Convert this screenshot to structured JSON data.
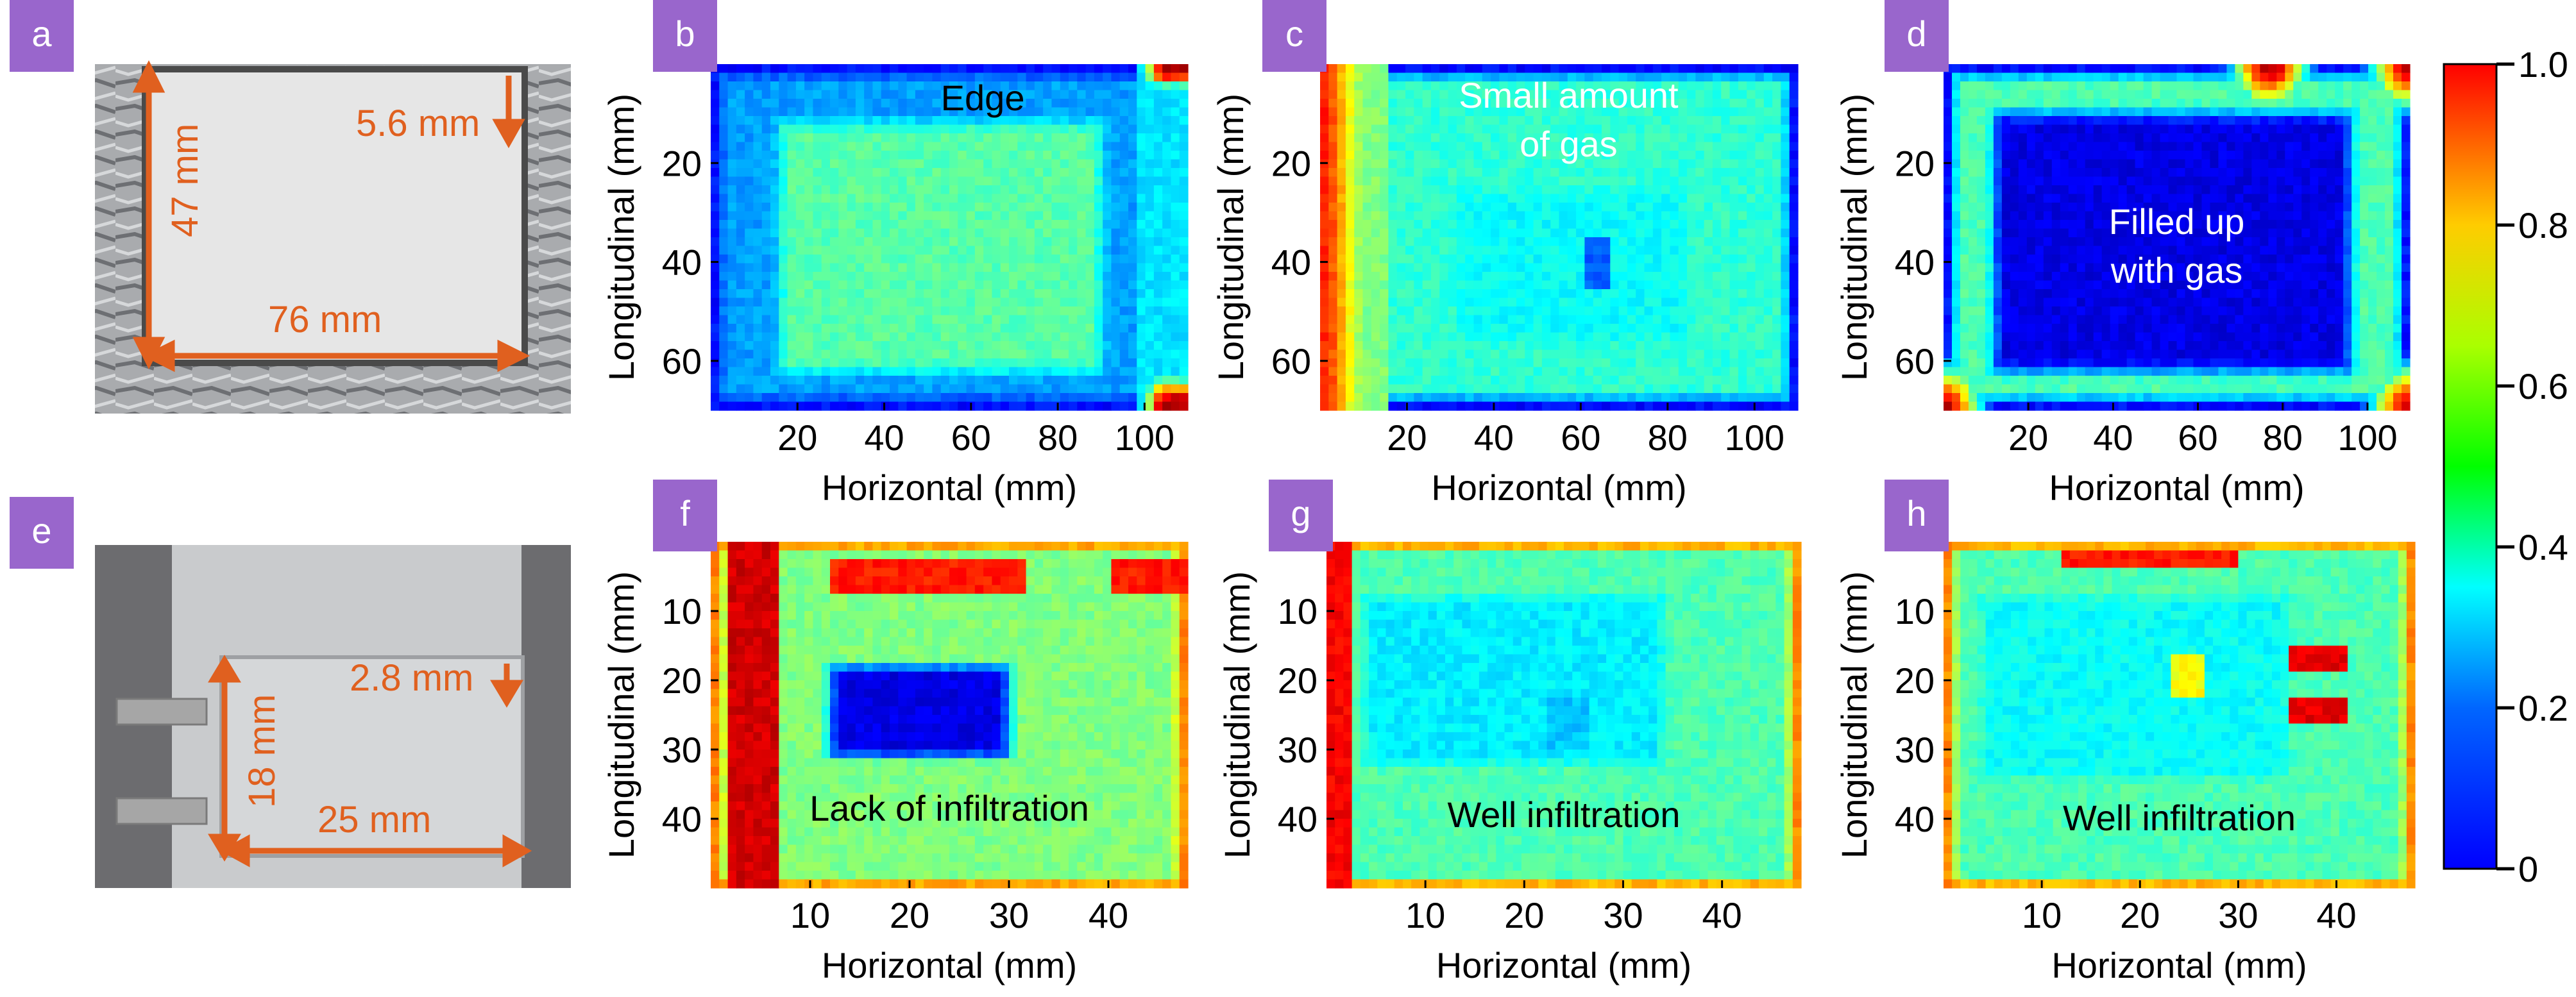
{
  "figure": {
    "panel_badge_color": "#9966cc",
    "annotation_color": "#e0601f",
    "colormap": "jet",
    "colorbar": {
      "min": 0,
      "max": 1,
      "ticks": [
        {
          "value": 0,
          "label": "0"
        },
        {
          "value": 0.2,
          "label": "0.2"
        },
        {
          "value": 0.4,
          "label": "0.4"
        },
        {
          "value": 0.6,
          "label": "0.6"
        },
        {
          "value": 0.8,
          "label": "0.8"
        },
        {
          "value": 1.0,
          "label": "1.0"
        }
      ]
    },
    "photos": [
      {
        "letter": "a",
        "labels": [
          "47 mm",
          "5.6 mm",
          "76 mm"
        ]
      },
      {
        "letter": "e",
        "labels": [
          "18 mm",
          "2.8 mm",
          "25 mm"
        ]
      }
    ]
  },
  "chart_data": [
    {
      "type": "heatmap",
      "letter": "b",
      "annotation": [
        "Edge"
      ],
      "xlabel": "Horizontal (mm)",
      "ylabel": "Longitudinal (mm)",
      "xlim": [
        0,
        110
      ],
      "ylim": [
        70,
        0
      ],
      "xticks": [
        20,
        40,
        60,
        80,
        100
      ],
      "yticks": [
        20,
        40,
        60
      ],
      "pattern": "inner_box",
      "outer": 0.12,
      "ring": 0.28,
      "inner": 0.46,
      "inner_box": [
        16,
        12,
        90,
        62
      ]
    },
    {
      "type": "heatmap",
      "letter": "c",
      "annotation": [
        "Small amount",
        "of gas"
      ],
      "xlabel": "Horizontal (mm)",
      "ylabel": "Longitudinal (mm)",
      "xlim": [
        0,
        110
      ],
      "ylim": [
        70,
        0
      ],
      "xticks": [
        20,
        40,
        60,
        80,
        100
      ],
      "yticks": [
        20,
        40,
        60
      ],
      "pattern": "center_gas",
      "outer": 0.1,
      "ring": 0.42,
      "inner": 0.38,
      "inner_box": [
        32,
        26,
        84,
        56
      ]
    },
    {
      "type": "heatmap",
      "letter": "d",
      "annotation": [
        "Filled up",
        "with gas"
      ],
      "xlabel": "Horizontal (mm)",
      "ylabel": "Longitudinal (mm)",
      "xlim": [
        0,
        110
      ],
      "ylim": [
        70,
        0
      ],
      "xticks": [
        20,
        40,
        60,
        80,
        100
      ],
      "yticks": [
        20,
        40,
        60
      ],
      "pattern": "filled_gas",
      "outer": 0.1,
      "ring": 0.45,
      "inner": 0.1,
      "inner_box": [
        12,
        10,
        96,
        62
      ]
    },
    {
      "type": "heatmap",
      "letter": "f",
      "annotation": [
        "Lack of infiltration"
      ],
      "xlabel": "Horizontal (mm)",
      "ylabel": "Longitudinal (mm)",
      "xlim": [
        0,
        48
      ],
      "ylim": [
        50,
        0
      ],
      "xticks": [
        10,
        20,
        30,
        40
      ],
      "yticks": [
        10,
        20,
        30,
        40
      ],
      "pattern": "lack",
      "outer": 0.78,
      "ring": 0.5,
      "inner": 0.1,
      "inner_box": [
        12,
        18,
        30,
        31
      ]
    },
    {
      "type": "heatmap",
      "letter": "g",
      "annotation": [
        "Well infiltration"
      ],
      "xlabel": "Horizontal (mm)",
      "ylabel": "Longitudinal (mm)",
      "xlim": [
        0,
        48
      ],
      "ylim": [
        50,
        0
      ],
      "xticks": [
        10,
        20,
        30,
        40
      ],
      "yticks": [
        10,
        20,
        30,
        40
      ],
      "pattern": "well",
      "outer": 0.78,
      "ring": 0.45,
      "inner": 0.36,
      "inner_box": [
        4,
        8,
        34,
        32
      ]
    },
    {
      "type": "heatmap",
      "letter": "h",
      "annotation": [
        "Well infiltration"
      ],
      "xlabel": "Horizontal (mm)",
      "ylabel": "Longitudinal (mm)",
      "xlim": [
        0,
        48
      ],
      "ylim": [
        50,
        0
      ],
      "xticks": [
        10,
        20,
        30,
        40
      ],
      "yticks": [
        10,
        20,
        30,
        40
      ],
      "pattern": "well2",
      "outer": 0.78,
      "ring": 0.45,
      "inner": 0.38,
      "inner_box": [
        4,
        8,
        35,
        34
      ]
    }
  ]
}
